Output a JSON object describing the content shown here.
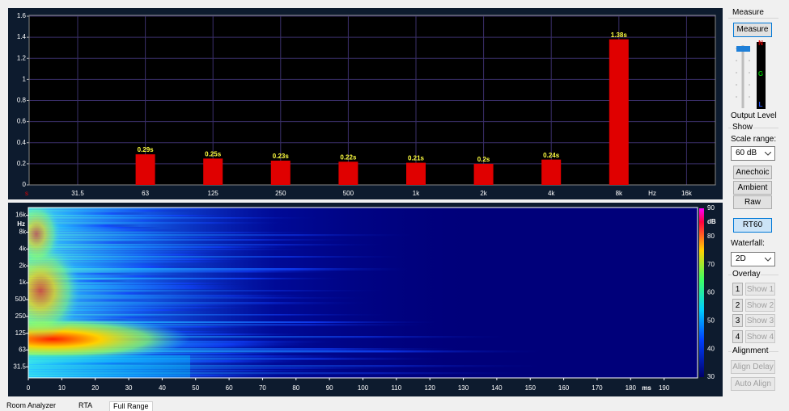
{
  "chart_data": [
    {
      "type": "bar",
      "y_unit": "s",
      "x_unit": "Hz",
      "categories": [
        "31.5",
        "63",
        "125",
        "250",
        "500",
        "1k",
        "2k",
        "4k",
        "8k",
        "16k"
      ],
      "values": [
        null,
        0.29,
        0.25,
        0.23,
        0.22,
        0.21,
        0.2,
        0.24,
        1.38,
        null
      ],
      "value_labels": [
        null,
        "0.29s",
        "0.25s",
        "0.23s",
        "0.22s",
        "0.21s",
        "0.2s",
        "0.24s",
        "1.38s",
        null
      ],
      "color": "#e00000",
      "ylim": [
        0,
        1.6
      ],
      "yticks": [
        0,
        0.2,
        0.4,
        0.6,
        0.8,
        1,
        1.2,
        1.4,
        1.6
      ],
      "grid": true
    },
    {
      "type": "spectrogram",
      "y_unit": "Hz",
      "x_unit": "ms",
      "z_unit": "dB",
      "log_y": true,
      "xlim": [
        0,
        200
      ],
      "xticks": [
        0,
        10,
        20,
        30,
        40,
        50,
        60,
        70,
        80,
        90,
        100,
        110,
        120,
        130,
        140,
        150,
        160,
        170,
        180,
        190
      ],
      "ylim": [
        20,
        22000
      ],
      "yticks": [
        {
          "value": 16000,
          "label": "16k"
        },
        {
          "value": 8000,
          "label": "8k"
        },
        {
          "value": 4000,
          "label": "4k"
        },
        {
          "value": 2000,
          "label": "2k"
        },
        {
          "value": 1000,
          "label": "1k"
        },
        500,
        250,
        125,
        63,
        31.5
      ],
      "zlim": [
        30,
        90
      ],
      "zticks": [
        30,
        40,
        50,
        60,
        70,
        80,
        90
      ]
    }
  ],
  "panel": {
    "measure_group": "Measure",
    "measure_button": "Measure",
    "meter_labels": [
      "N",
      "G",
      "L"
    ],
    "output_level": "Output Level",
    "show_group": "Show",
    "scale_range_label": "Scale range:",
    "scale_range_value": "60 dB",
    "view_buttons": [
      "Anechoic",
      "Ambient",
      "Raw"
    ],
    "rt60_button": "RT60",
    "waterfall_label": "Waterfall:",
    "waterfall_value": "2D",
    "overlay_group": "Overlay",
    "overlays": [
      {
        "index": "1",
        "button": "Show 1"
      },
      {
        "index": "2",
        "button": "Show 2"
      },
      {
        "index": "3",
        "button": "Show 3"
      },
      {
        "index": "4",
        "button": "Show 4"
      }
    ],
    "alignment_group": "Alignment",
    "align_buttons": [
      "Align Delay",
      "Auto Align"
    ]
  },
  "tabs": [
    "Room Analyzer",
    "RTA",
    "Full Range"
  ]
}
